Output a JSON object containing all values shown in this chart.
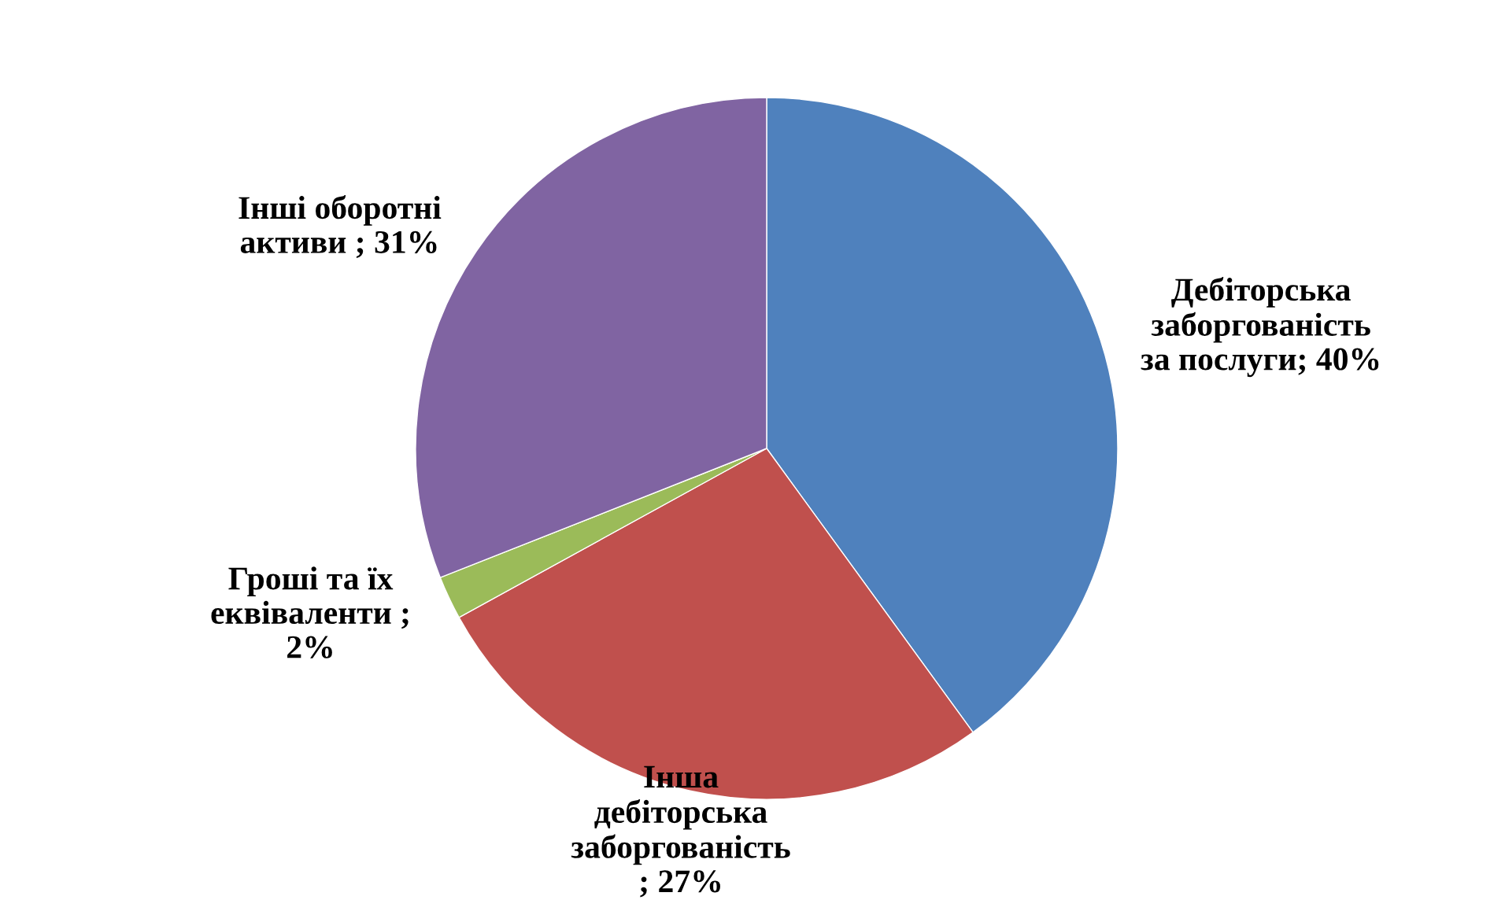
{
  "chart_data": {
    "type": "pie",
    "categories": [
      "Дебіторська\nзаборгованість\nза послуги",
      "Інша\nдебіторська\nзаборгованість",
      "Гроші та їх\nеквіваленти",
      "Інші оборотні\nактиви"
    ],
    "values": [
      40,
      27,
      2,
      31
    ],
    "colors": [
      "#4f81bd",
      "#c0504d",
      "#9bbb59",
      "#8064a2"
    ],
    "value_labels": [
      "; 40%",
      "\n; 27%",
      " ;\n2%",
      " ; 31%"
    ]
  }
}
